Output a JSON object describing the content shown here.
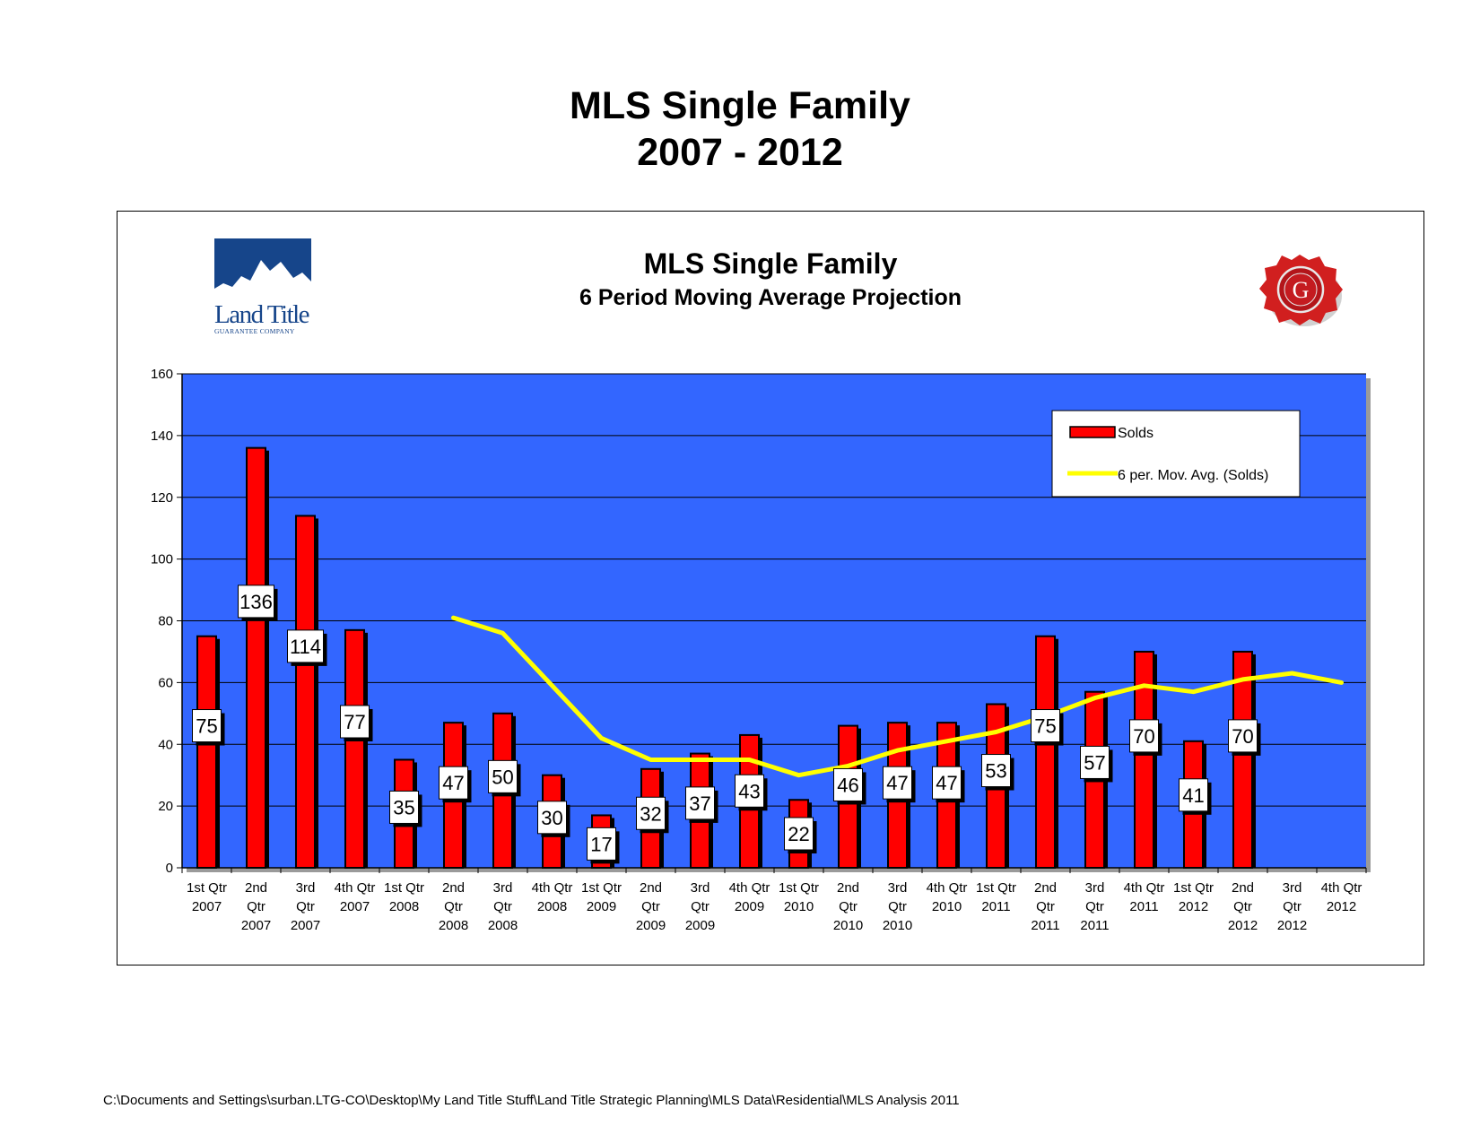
{
  "page": {
    "title_line1": "MLS Single Family",
    "title_line2": "2007 - 2012",
    "footer_path": "C:\\Documents and Settings\\surban.LTG-CO\\Desktop\\My Land Title Stuff\\Land Title Strategic Planning\\MLS Data\\Residential\\MLS Analysis 2011"
  },
  "logos": {
    "left_brand": "Land Title",
    "left_tagline": "GUARANTEE COMPANY",
    "left_icon": "mountain-logo-icon",
    "right_icon": "wax-seal-g-icon",
    "right_letter": "G"
  },
  "colors": {
    "plot_background": "#3366ff",
    "bar_fill": "#ff0000",
    "moving_average_line": "#ffff00",
    "bar_outline": "#000000"
  },
  "chart_data": {
    "type": "bar",
    "title": "MLS Single Family",
    "subtitle": "6 Period Moving Average Projection",
    "categories": [
      [
        "1st Qtr",
        "2007"
      ],
      [
        "2nd",
        "Qtr",
        "2007"
      ],
      [
        "3rd",
        "Qtr",
        "2007"
      ],
      [
        "4th Qtr",
        "2007"
      ],
      [
        "1st Qtr",
        "2008"
      ],
      [
        "2nd",
        "Qtr",
        "2008"
      ],
      [
        "3rd",
        "Qtr",
        "2008"
      ],
      [
        "4th Qtr",
        "2008"
      ],
      [
        "1st Qtr",
        "2009"
      ],
      [
        "2nd",
        "Qtr",
        "2009"
      ],
      [
        "3rd",
        "Qtr",
        "2009"
      ],
      [
        "4th Qtr",
        "2009"
      ],
      [
        "1st Qtr",
        "2010"
      ],
      [
        "2nd",
        "Qtr",
        "2010"
      ],
      [
        "3rd",
        "Qtr",
        "2010"
      ],
      [
        "4th Qtr",
        "2010"
      ],
      [
        "1st Qtr",
        "2011"
      ],
      [
        "2nd",
        "Qtr",
        "2011"
      ],
      [
        "3rd",
        "Qtr",
        "2011"
      ],
      [
        "4th Qtr",
        "2011"
      ],
      [
        "1st Qtr",
        "2012"
      ],
      [
        "2nd",
        "Qtr",
        "2012"
      ],
      [
        "3rd",
        "Qtr",
        "2012"
      ],
      [
        "4th Qtr",
        "2012"
      ]
    ],
    "series": [
      {
        "name": "Solds",
        "type": "bar",
        "values": [
          75,
          136,
          114,
          77,
          35,
          47,
          50,
          30,
          17,
          32,
          37,
          43,
          22,
          46,
          47,
          47,
          53,
          75,
          57,
          70,
          41,
          70,
          null,
          null
        ]
      },
      {
        "name": "6 per. Mov. Avg. (Solds)",
        "type": "line",
        "values": [
          null,
          null,
          null,
          null,
          null,
          81,
          76,
          59,
          42,
          35,
          35,
          35,
          30,
          33,
          38,
          41,
          44,
          49,
          55,
          59,
          57,
          61,
          63,
          60
        ]
      }
    ],
    "ylim": [
      0,
      160
    ],
    "yticks": [
      0,
      20,
      40,
      60,
      80,
      100,
      120,
      140,
      160
    ],
    "grid": true,
    "legend_position": "top-right",
    "data_labels": true
  }
}
